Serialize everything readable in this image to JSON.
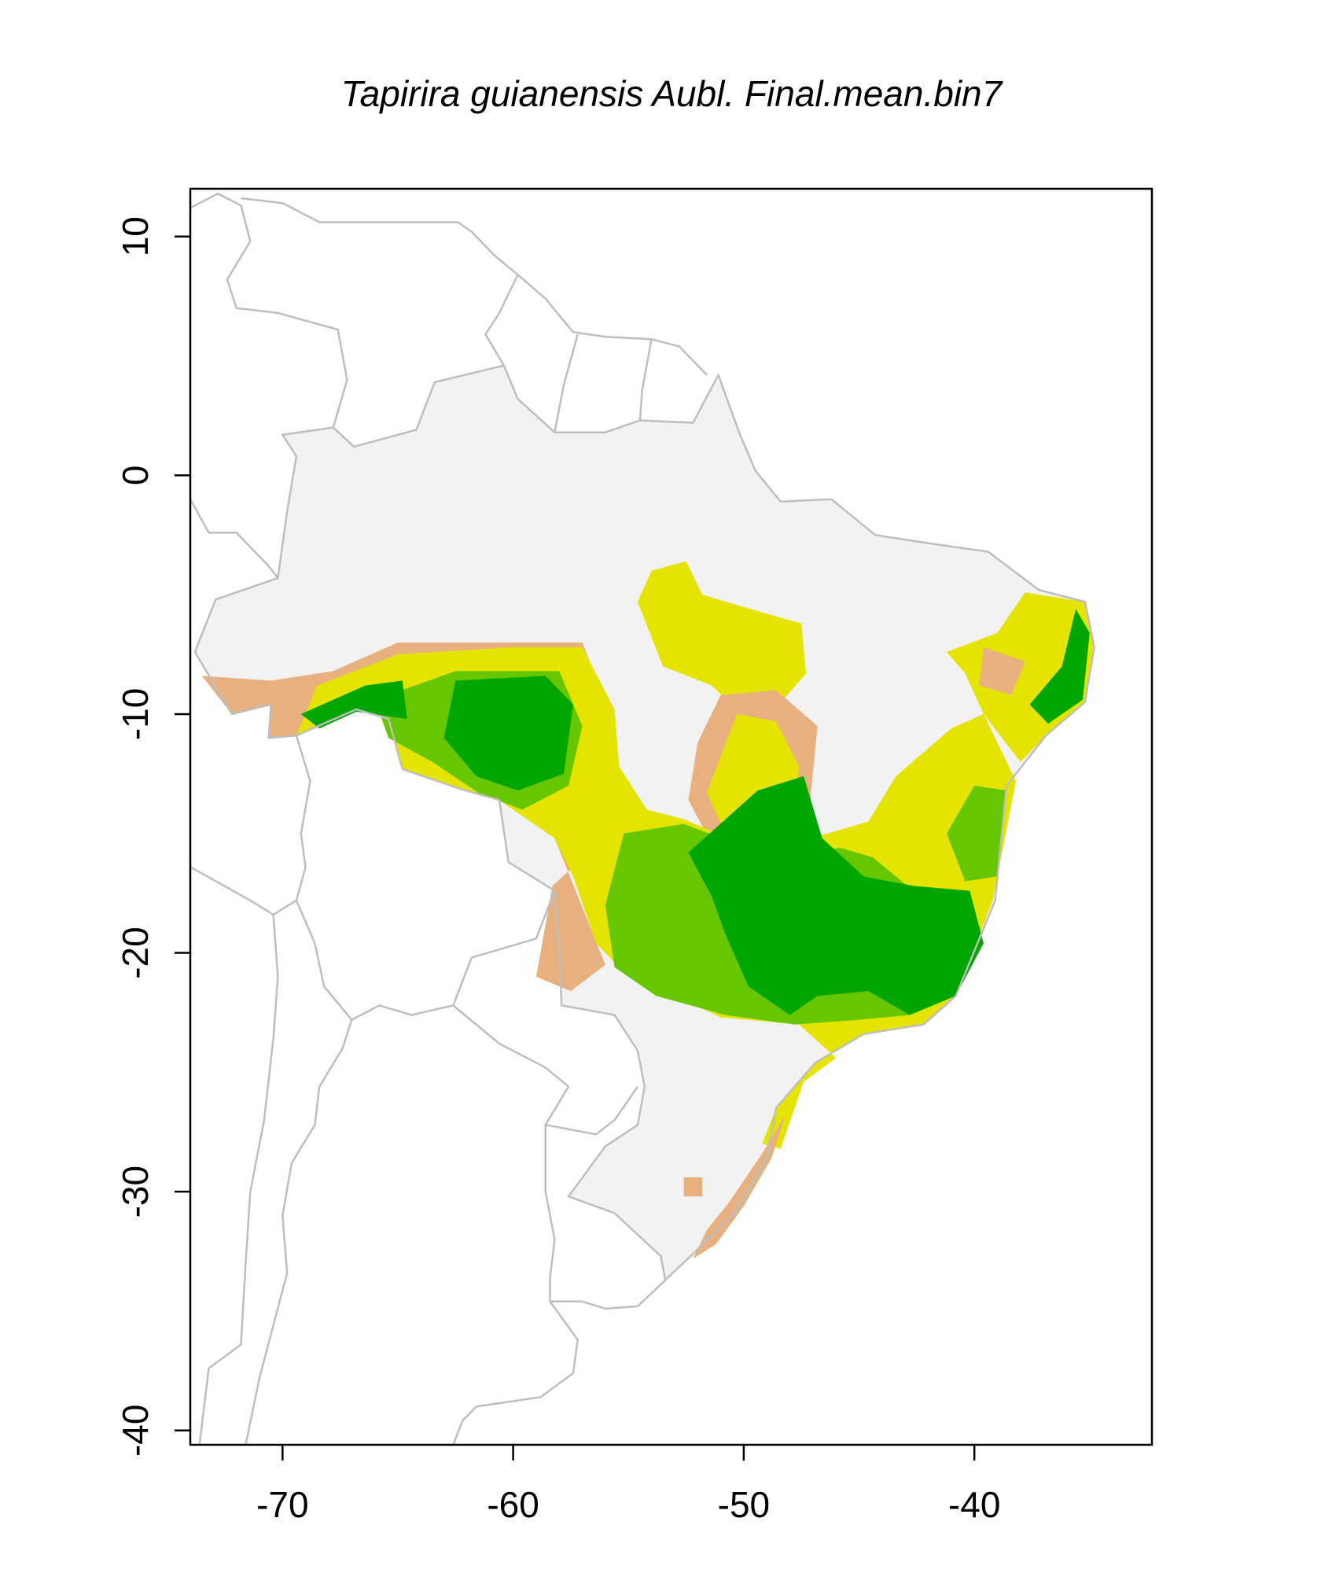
{
  "title": "Tapirira guianensis Aubl. Final.mean.bin7",
  "colors": {
    "land": "#f2f2f2",
    "border": "#bebebe",
    "class1": "#e8b07f",
    "class2": "#e5e400",
    "class3": "#66c700",
    "class4": "#00a600",
    "frame": "#000000"
  },
  "map_data": {
    "type": "raster-map",
    "xlim": [
      -74,
      -32.3
    ],
    "ylim": [
      -40.6,
      12
    ],
    "x_ticks": [
      -70,
      -60,
      -50,
      -40
    ],
    "y_ticks": [
      10,
      0,
      -10,
      -20,
      -30,
      -40
    ],
    "x_tick_labels": [
      "-70",
      "-60",
      "-50",
      "-40"
    ],
    "y_tick_labels": [
      "10",
      "0",
      "-10",
      "-20",
      "-30",
      "-40"
    ]
  }
}
